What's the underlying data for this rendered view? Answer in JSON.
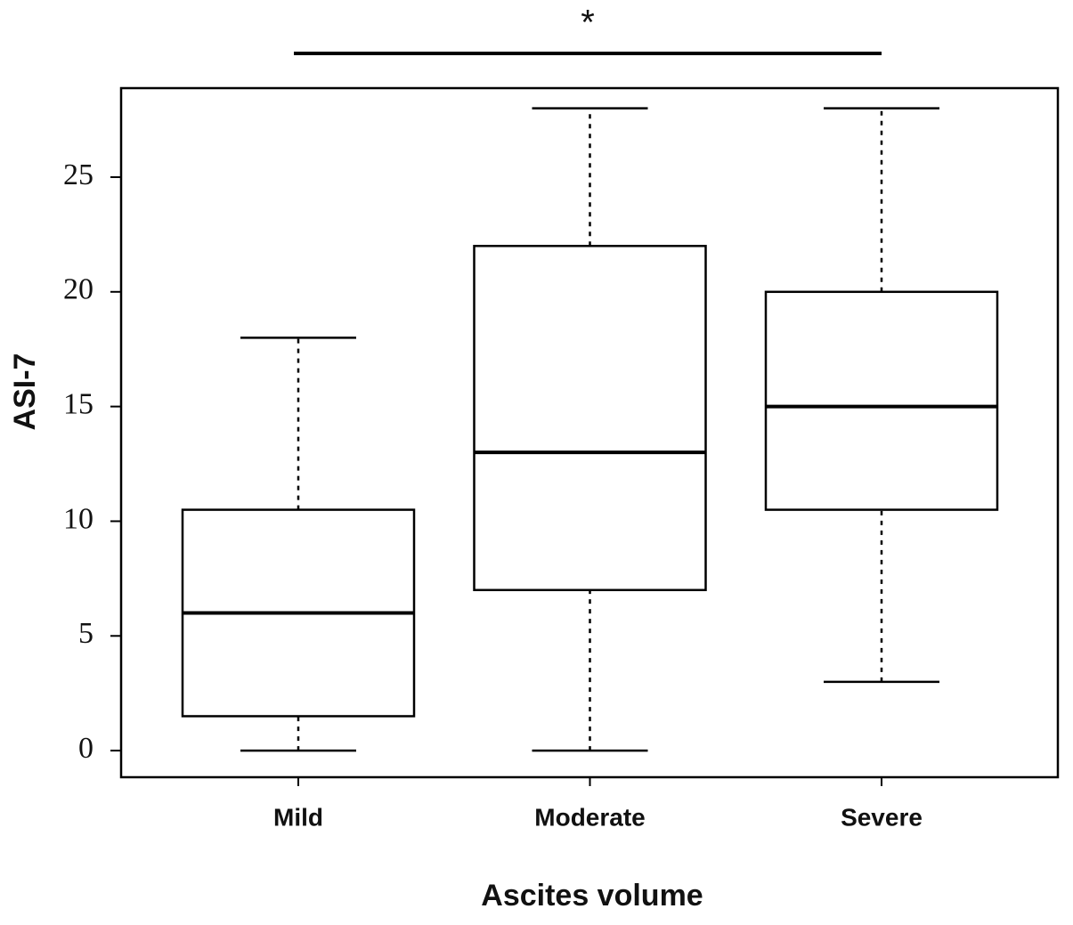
{
  "chart_data": {
    "type": "box",
    "annotation": "*",
    "xlabel": "Ascites volume",
    "ylabel": "ASI-7",
    "categories": [
      "Mild",
      "Moderate",
      "Severe"
    ],
    "boxes": [
      {
        "min": 0,
        "q1": 1.5,
        "median": 6,
        "q3": 10.5,
        "max": 18
      },
      {
        "min": 0,
        "q1": 7,
        "median": 13,
        "q3": 22,
        "max": 28
      },
      {
        "min": 3,
        "q1": 10.5,
        "median": 15,
        "q3": 20,
        "max": 28
      }
    ],
    "color": "#000000",
    "ylim": [
      -1.16,
      28.88
    ],
    "yticks": [
      0,
      5,
      10,
      15,
      20,
      25
    ]
  }
}
